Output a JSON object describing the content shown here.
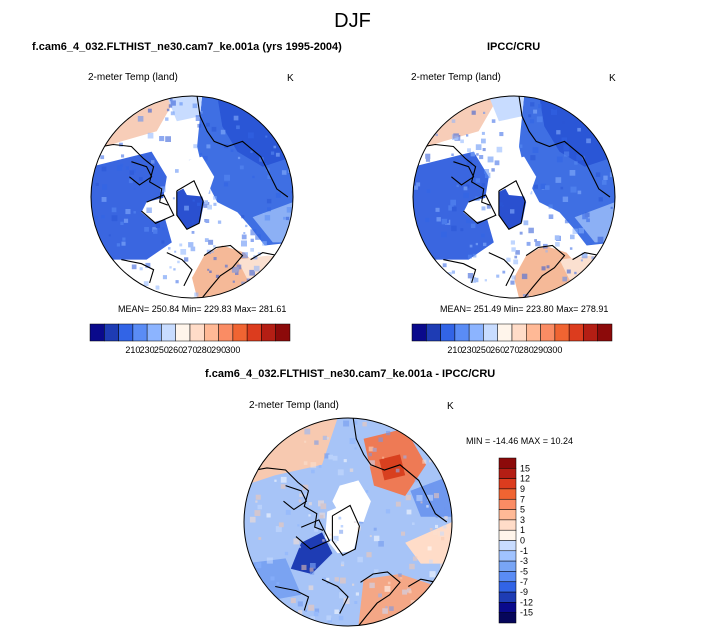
{
  "page_title": "DJF",
  "panels": [
    {
      "title": "f.cam6_4_032.FLTHIST_ne30.cam7_ke.001a (yrs 1995-2004)",
      "variable": "2-meter Temp (land)",
      "units": "K",
      "stats": "MEAN= 250.84  Min= 229.83  Max= 281.61"
    },
    {
      "title": "IPCC/CRU",
      "variable": "2-meter Temp (land)",
      "units": "K",
      "stats": "MEAN= 251.49  Min= 223.80  Max= 278.91"
    },
    {
      "title": "f.cam6_4_032.FLTHIST_ne30.cam7_ke.001a - IPCC/CRU",
      "variable": "2-meter Temp (land)",
      "units": "K",
      "stats": "MIN = -14.46  MAX =  10.24"
    }
  ],
  "colorbar_abs": {
    "ticks": [
      "210",
      "230",
      "250",
      "260",
      "270",
      "280",
      "290",
      "300"
    ],
    "colors": [
      "#0a0a8c",
      "#1e3cb4",
      "#3264e6",
      "#5a8cf5",
      "#8cb4ff",
      "#c8dcff",
      "#fff5eb",
      "#ffdcc8",
      "#ffb996",
      "#fa8c64",
      "#f06432",
      "#dc3c1e",
      "#b41e14",
      "#8c0a0a"
    ]
  },
  "colorbar_diff": {
    "ticks": [
      "15",
      "12",
      "9",
      "7",
      "5",
      "3",
      "1",
      "0",
      "-1",
      "-3",
      "-5",
      "-7",
      "-9",
      "-12",
      "-15"
    ],
    "colors": [
      "#8c0a0a",
      "#b41e14",
      "#dc3c1e",
      "#f06432",
      "#fa8c64",
      "#ffb996",
      "#ffdcc8",
      "#fff5eb",
      "#c8dcff",
      "#a0c3ff",
      "#78a5f5",
      "#5a8cf5",
      "#3264e6",
      "#1e3cb4",
      "#0a0a8c",
      "#06065a"
    ]
  },
  "chart_data": [
    {
      "type": "heatmap",
      "projection": "north polar stereographic",
      "title": "f.cam6_4_032.FLTHIST_ne30.cam7_ke.001a (yrs 1995-2004)",
      "variable": "2-meter Temp (land)",
      "units": "K",
      "mean": 250.84,
      "min": 229.83,
      "max": 281.61,
      "contour_levels": [
        210,
        230,
        250,
        260,
        270,
        280,
        290,
        300
      ]
    },
    {
      "type": "heatmap",
      "projection": "north polar stereographic",
      "title": "IPCC/CRU",
      "variable": "2-meter Temp (land)",
      "units": "K",
      "mean": 251.49,
      "min": 223.8,
      "max": 278.91,
      "contour_levels": [
        210,
        230,
        250,
        260,
        270,
        280,
        290,
        300
      ]
    },
    {
      "type": "heatmap",
      "projection": "north polar stereographic",
      "title": "f.cam6_4_032.FLTHIST_ne30.cam7_ke.001a - IPCC/CRU",
      "variable": "2-meter Temp (land)",
      "units": "K",
      "min": -14.46,
      "max": 10.24,
      "contour_levels": [
        -15,
        -12,
        -9,
        -7,
        -5,
        -3,
        -1,
        0,
        1,
        3,
        5,
        7,
        9,
        12,
        15
      ]
    }
  ]
}
